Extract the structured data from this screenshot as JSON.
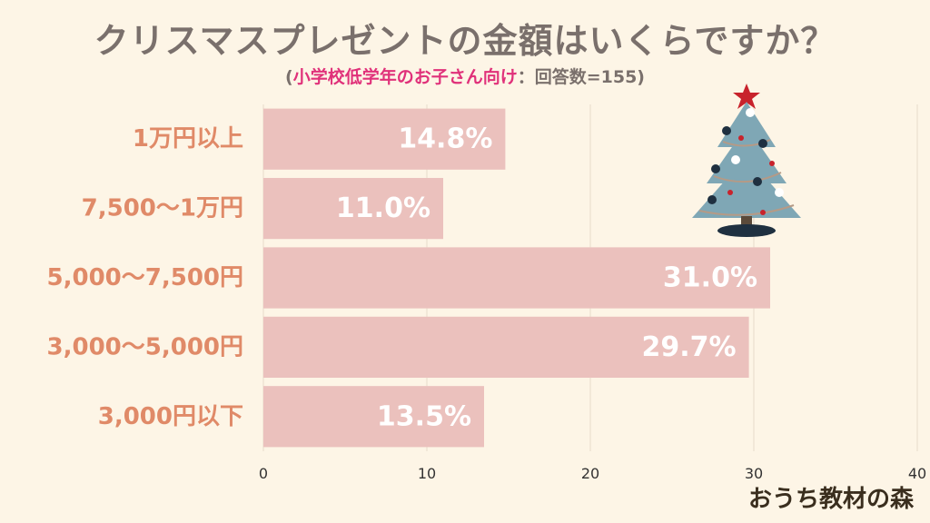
{
  "header": {
    "title": "クリスマスプレゼントの金額はいくらですか？",
    "subtitle_open": "(",
    "subtitle_highlight": "小学校低学年のお子さん向け",
    "subtitle_rest": "：回答数=155)"
  },
  "watermark": "おうち教材の森",
  "colors": {
    "bar": "#ebc1bd",
    "category_label": "#e08a68",
    "title": "#7a706c",
    "highlight": "#e0317a",
    "background": "#fdf5e6"
  },
  "chart_data": {
    "type": "bar",
    "orientation": "horizontal",
    "categories": [
      "1万円以上",
      "7,500〜1万円",
      "5,000〜7,500円",
      "3,000〜5,000円",
      "3,000円以下"
    ],
    "values": [
      14.8,
      11.0,
      31.0,
      29.7,
      13.5
    ],
    "value_labels": [
      "14.8%",
      "11.0%",
      "31.0%",
      "29.7%",
      "13.5%"
    ],
    "xlim": [
      0,
      40
    ],
    "xticks": [
      0,
      10,
      20,
      30,
      40
    ],
    "grid": true
  }
}
